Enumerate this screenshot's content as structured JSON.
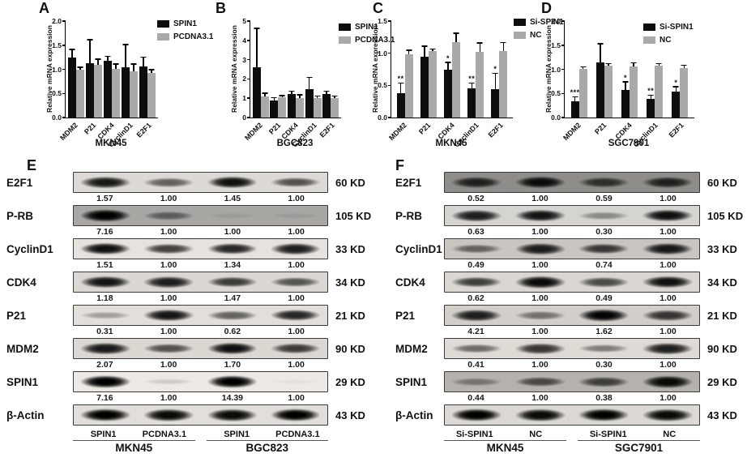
{
  "figure_panels": [
    "A",
    "B",
    "C",
    "D",
    "E",
    "F"
  ],
  "bar_color_black": "#0d0d0d",
  "bar_color_gray": "#a9a9a9",
  "chart_data": [
    {
      "panel": "A",
      "type": "bar",
      "title": "MKN45",
      "ylabel": "Relative mRNA expression",
      "ymax": 2.0,
      "yticks": [
        "0.0",
        "0.5",
        "1.0",
        "1.5",
        "2.0"
      ],
      "categories": [
        "MDM2",
        "P21",
        "CDK4",
        "CyclinD1",
        "E2F1"
      ],
      "legend_position": "top-right",
      "series": [
        {
          "name": "SPIN1",
          "color": "#0d0d0d",
          "values": [
            1.25,
            1.12,
            1.18,
            1.05,
            1.06
          ],
          "errors": [
            0.15,
            0.48,
            0.08,
            0.45,
            0.18
          ],
          "sig": [
            "",
            "",
            "",
            "",
            ""
          ]
        },
        {
          "name": "PCDNA3.1",
          "color": "#a9a9a9",
          "values": [
            1.0,
            1.1,
            1.01,
            0.96,
            0.93
          ],
          "errors": [
            0.03,
            0.1,
            0.09,
            0.14,
            0.05
          ],
          "sig": [
            "",
            "",
            "",
            "",
            ""
          ]
        }
      ]
    },
    {
      "panel": "B",
      "type": "bar",
      "title": "BGC823",
      "ylabel": "Relative mRNA expression",
      "ymax": 5,
      "yticks": [
        "0",
        "1",
        "2",
        "3",
        "4",
        "5"
      ],
      "categories": [
        "MDM2",
        "P21",
        "CDK4",
        "CyclinD1",
        "E2F1"
      ],
      "legend_position": "top-right",
      "series": [
        {
          "name": "SPIN1",
          "color": "#0d0d0d",
          "values": [
            2.6,
            0.9,
            1.22,
            1.47,
            1.22
          ],
          "errors": [
            2.0,
            0.1,
            0.12,
            0.58,
            0.12
          ],
          "sig": [
            "",
            "",
            "",
            "",
            ""
          ]
        },
        {
          "name": "PCDNA3.1",
          "color": "#a9a9a9",
          "values": [
            1.08,
            1.05,
            1.0,
            1.0,
            1.0
          ],
          "errors": [
            0.15,
            0.05,
            0.15,
            0.08,
            0.08
          ],
          "sig": [
            "",
            "",
            "",
            "",
            ""
          ]
        }
      ]
    },
    {
      "panel": "C",
      "type": "bar",
      "title": "MKN45",
      "ylabel": "Relative mRNA expression",
      "ymax": 1.5,
      "yticks": [
        "0.0",
        "0.5",
        "1.0",
        "1.5"
      ],
      "categories": [
        "MDM2",
        "P21",
        "CDK4",
        "CyclinD1",
        "E2F1"
      ],
      "legend_position": "top-right",
      "series": [
        {
          "name": "Si-SPIN1",
          "color": "#0d0d0d",
          "values": [
            0.38,
            0.94,
            0.75,
            0.45,
            0.44
          ],
          "errors": [
            0.15,
            0.16,
            0.1,
            0.08,
            0.24
          ],
          "sig": [
            "**",
            "",
            "*",
            "**",
            "*"
          ]
        },
        {
          "name": "NC",
          "color": "#a9a9a9",
          "values": [
            0.98,
            1.03,
            1.17,
            1.02,
            1.04
          ],
          "errors": [
            0.06,
            0.03,
            0.13,
            0.13,
            0.12
          ],
          "sig": [
            "",
            "",
            "",
            "",
            ""
          ]
        }
      ]
    },
    {
      "panel": "D",
      "type": "bar",
      "title": "SGC7901",
      "ylabel": "Relative mRNA expression",
      "ymax": 2.0,
      "yticks": [
        "0.0",
        "0.5",
        "1.0",
        "1.5",
        "2.0"
      ],
      "categories": [
        "MDM2",
        "P21",
        "CDK4",
        "CyclinD1",
        "E2F1"
      ],
      "legend_position": "top-right",
      "series": [
        {
          "name": "Si-SPIN1",
          "color": "#0d0d0d",
          "values": [
            0.33,
            1.15,
            0.58,
            0.38,
            0.54
          ],
          "errors": [
            0.09,
            0.37,
            0.15,
            0.07,
            0.09
          ],
          "sig": [
            "***",
            "",
            "*",
            "**",
            "*"
          ]
        },
        {
          "name": "NC",
          "color": "#a9a9a9",
          "values": [
            1.01,
            1.07,
            1.06,
            1.07,
            1.02
          ],
          "errors": [
            0.03,
            0.04,
            0.06,
            0.04,
            0.05
          ],
          "sig": [
            "",
            "",
            "",
            "",
            ""
          ]
        }
      ]
    }
  ],
  "blots": [
    {
      "panel": "E",
      "rows": [
        {
          "protein": "E2F1",
          "kd": "60 KD",
          "values": [
            "1.57",
            "1.00",
            "1.45",
            "1.00"
          ],
          "bands": [
            0.88,
            0.55,
            0.92,
            0.62
          ],
          "bg": "#dddad5"
        },
        {
          "protein": "P-RB",
          "kd": "105 KD",
          "values": [
            "7.16",
            "1.00",
            "1.00",
            "1.00"
          ],
          "bands": [
            1.0,
            0.45,
            0.07,
            0.07
          ],
          "bg": "#a9a7a4"
        },
        {
          "protein": "CyclinD1",
          "kd": "33 KD",
          "values": [
            "1.51",
            "1.00",
            "1.34",
            "1.00"
          ],
          "bands": [
            0.92,
            0.7,
            0.82,
            0.86
          ],
          "bg": "#e6e3de"
        },
        {
          "protein": "CDK4",
          "kd": "34 KD",
          "values": [
            "1.18",
            "1.00",
            "1.47",
            "1.00"
          ],
          "bands": [
            0.9,
            0.86,
            0.72,
            0.6
          ],
          "bg": "#dbd8d3"
        },
        {
          "protein": "P21",
          "kd": "21 KD",
          "values": [
            "0.31",
            "1.00",
            "0.62",
            "1.00"
          ],
          "bands": [
            0.28,
            0.9,
            0.55,
            0.82
          ],
          "bg": "#e2dfda"
        },
        {
          "protein": "MDM2",
          "kd": "90 KD",
          "values": [
            "2.07",
            "1.00",
            "1.70",
            "1.00"
          ],
          "bands": [
            0.88,
            0.62,
            0.92,
            0.72
          ],
          "bg": "#dbd8d3"
        },
        {
          "protein": "SPIN1",
          "kd": "29 KD",
          "values": [
            "7.16",
            "1.00",
            "14.39",
            "1.00"
          ],
          "bands": [
            1.0,
            0.12,
            1.0,
            0.03
          ],
          "bg": "#edeae5"
        },
        {
          "protein": "β-Actin",
          "kd": "43 KD",
          "values": null,
          "bands": [
            1.0,
            0.95,
            0.95,
            1.0
          ],
          "bg": "#e2dfda"
        }
      ],
      "lanes": [
        "SPIN1",
        "PCDNA3.1",
        "SPIN1",
        "PCDNA3.1"
      ],
      "groups": [
        "MKN45",
        "BGC823"
      ]
    },
    {
      "panel": "F",
      "rows": [
        {
          "protein": "E2F1",
          "kd": "60 KD",
          "values": [
            "0.52",
            "1.00",
            "0.59",
            "1.00"
          ],
          "bands": [
            0.78,
            0.92,
            0.68,
            0.78
          ],
          "bg": "#8f8d8a"
        },
        {
          "protein": "P-RB",
          "kd": "105 KD",
          "values": [
            "0.63",
            "1.00",
            "0.30",
            "1.00"
          ],
          "bands": [
            0.85,
            0.9,
            0.35,
            0.92
          ],
          "bg": "#d6d4d0"
        },
        {
          "protein": "CyclinD1",
          "kd": "33 KD",
          "values": [
            "0.49",
            "1.00",
            "0.74",
            "1.00"
          ],
          "bands": [
            0.5,
            0.85,
            0.72,
            0.88
          ],
          "bg": "#c9c6c1"
        },
        {
          "protein": "CDK4",
          "kd": "34 KD",
          "values": [
            "0.62",
            "1.00",
            "0.49",
            "1.00"
          ],
          "bands": [
            0.7,
            0.95,
            0.65,
            0.92
          ],
          "bg": "#dad7d2"
        },
        {
          "protein": "P21",
          "kd": "21 KD",
          "values": [
            "4.21",
            "1.00",
            "1.62",
            "1.00"
          ],
          "bands": [
            0.85,
            0.45,
            0.98,
            0.75
          ],
          "bg": "#d2cfca"
        },
        {
          "protein": "MDM2",
          "kd": "90 KD",
          "values": [
            "0.41",
            "1.00",
            "0.30",
            "1.00"
          ],
          "bands": [
            0.5,
            0.75,
            0.42,
            0.85
          ],
          "bg": "#dedbd6"
        },
        {
          "protein": "SPIN1",
          "kd": "29 KD",
          "values": [
            "0.44",
            "1.00",
            "0.38",
            "1.00"
          ],
          "bands": [
            0.35,
            0.6,
            0.65,
            0.95
          ],
          "bg": "#b5b2ad"
        },
        {
          "protein": "β-Actin",
          "kd": "43 KD",
          "values": null,
          "bands": [
            1.0,
            0.95,
            1.0,
            0.95
          ],
          "bg": "#dcd9d4"
        }
      ],
      "lanes": [
        "Si-SPIN1",
        "NC",
        "Si-SPIN1",
        "NC"
      ],
      "groups": [
        "MKN45",
        "SGC7901"
      ]
    }
  ]
}
